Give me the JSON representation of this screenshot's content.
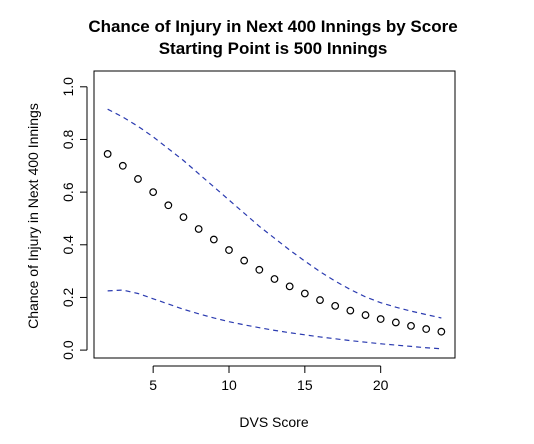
{
  "chart_data": {
    "type": "scatter",
    "title": "Chance of Injury in Next 400 Innings by Score",
    "subtitle": "Starting Point is 500 Innings",
    "xlabel": "DVS Score",
    "ylabel": "Chance of Injury in Next 400 Innings",
    "xlim": [
      1.1,
      24.9
    ],
    "ylim": [
      -0.03,
      1.06
    ],
    "x_ticks": [
      5,
      10,
      15,
      20
    ],
    "y_ticks": [
      0.0,
      0.2,
      0.4,
      0.6,
      0.8,
      1.0
    ],
    "y_tick_labels": [
      "0.0",
      "0.2",
      "0.4",
      "0.6",
      "0.8",
      "1.0"
    ],
    "grid": false,
    "series": [
      {
        "style": "points",
        "color": "#000000",
        "x": [
          2,
          3,
          4,
          5,
          6,
          7,
          8,
          9,
          10,
          11,
          12,
          13,
          14,
          15,
          16,
          17,
          18,
          19,
          20,
          21,
          22,
          23,
          24
        ],
        "y": [
          0.745,
          0.7,
          0.65,
          0.6,
          0.55,
          0.505,
          0.46,
          0.42,
          0.38,
          0.34,
          0.305,
          0.27,
          0.242,
          0.215,
          0.19,
          0.168,
          0.15,
          0.133,
          0.118,
          0.105,
          0.092,
          0.08,
          0.07
        ]
      },
      {
        "style": "dashed",
        "color": "#2b3bb0",
        "x": [
          2,
          3,
          4,
          5,
          6,
          7,
          8,
          9,
          10,
          11,
          12,
          13,
          14,
          15,
          16,
          17,
          18,
          19,
          20,
          21,
          22,
          23,
          24
        ],
        "y": [
          0.915,
          0.885,
          0.85,
          0.81,
          0.765,
          0.72,
          0.67,
          0.62,
          0.57,
          0.52,
          0.47,
          0.425,
          0.38,
          0.338,
          0.298,
          0.262,
          0.23,
          0.202,
          0.18,
          0.163,
          0.148,
          0.135,
          0.122
        ]
      },
      {
        "style": "dashed",
        "color": "#2b3bb0",
        "x": [
          2,
          3,
          4,
          5,
          6,
          7,
          8,
          9,
          10,
          11,
          12,
          13,
          14,
          15,
          16,
          17,
          18,
          19,
          20,
          21,
          22,
          23,
          24
        ],
        "y": [
          0.225,
          0.228,
          0.215,
          0.195,
          0.175,
          0.155,
          0.138,
          0.122,
          0.108,
          0.096,
          0.085,
          0.075,
          0.066,
          0.058,
          0.05,
          0.043,
          0.036,
          0.03,
          0.024,
          0.019,
          0.014,
          0.009,
          0.005
        ]
      }
    ]
  }
}
